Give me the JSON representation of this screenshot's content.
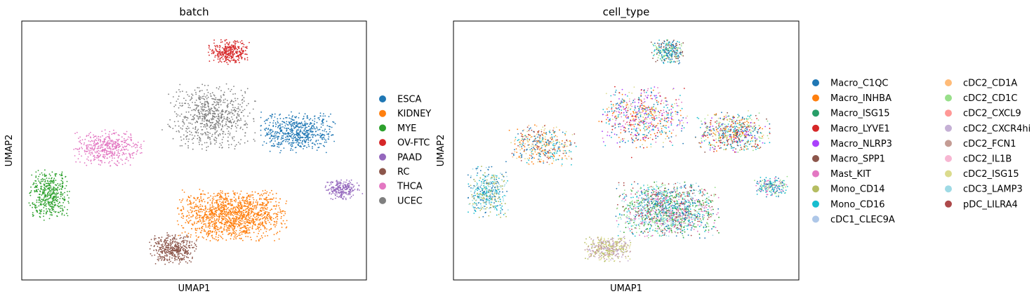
{
  "chart_data": [
    {
      "type": "scatter",
      "title": "batch",
      "xlabel": "UMAP1",
      "ylabel": "UMAP2",
      "ticks": "none",
      "grid": false,
      "legend_placement": "right",
      "legend": [
        {
          "label": "ESCA",
          "color": "#1f77b4"
        },
        {
          "label": "KIDNEY",
          "color": "#ff7f0e"
        },
        {
          "label": "MYE",
          "color": "#2ca02c"
        },
        {
          "label": "OV-FTC",
          "color": "#d62728"
        },
        {
          "label": "PAAD",
          "color": "#9467bd"
        },
        {
          "label": "RC",
          "color": "#8c564b"
        },
        {
          "label": "THCA",
          "color": "#e377c2"
        },
        {
          "label": "UCEC",
          "color": "#7f7f7f"
        }
      ],
      "clusters": [
        {
          "name": "OV-FTC",
          "center": [
            0.6,
            0.88
          ],
          "spread": [
            0.06,
            0.05
          ],
          "n": 320,
          "colors": [
            "#d62728"
          ]
        },
        {
          "name": "UCEC",
          "center": [
            0.55,
            0.63
          ],
          "spread": [
            0.13,
            0.13
          ],
          "n": 700,
          "colors": [
            "#7f7f7f"
          ]
        },
        {
          "name": "ESCA",
          "center": [
            0.8,
            0.57
          ],
          "spread": [
            0.11,
            0.08
          ],
          "n": 600,
          "colors": [
            "#1f77b4"
          ]
        },
        {
          "name": "THCA",
          "center": [
            0.25,
            0.51
          ],
          "spread": [
            0.1,
            0.07
          ],
          "n": 450,
          "colors": [
            "#e377c2"
          ]
        },
        {
          "name": "MYE",
          "center": [
            0.08,
            0.33
          ],
          "spread": [
            0.06,
            0.1
          ],
          "n": 450,
          "colors": [
            "#2ca02c"
          ]
        },
        {
          "name": "PAAD",
          "center": [
            0.93,
            0.35
          ],
          "spread": [
            0.05,
            0.04
          ],
          "n": 220,
          "colors": [
            "#9467bd"
          ]
        },
        {
          "name": "KIDNEY",
          "center": [
            0.61,
            0.25
          ],
          "spread": [
            0.16,
            0.1
          ],
          "n": 1400,
          "colors": [
            "#ff7f0e"
          ]
        },
        {
          "name": "RC",
          "center": [
            0.44,
            0.12
          ],
          "spread": [
            0.07,
            0.06
          ],
          "n": 420,
          "colors": [
            "#8c564b"
          ]
        }
      ]
    },
    {
      "type": "scatter",
      "title": "cell_type",
      "xlabel": "UMAP1",
      "ylabel": "UMAP2",
      "ticks": "none",
      "grid": false,
      "legend_placement": "right, two columns",
      "legend": [
        {
          "label": "Macro_C1QC",
          "color": "#1f77b4"
        },
        {
          "label": "Macro_INHBA",
          "color": "#ff7f0e"
        },
        {
          "label": "Macro_ISG15",
          "color": "#279e68"
        },
        {
          "label": "Macro_LYVE1",
          "color": "#d62728"
        },
        {
          "label": "Macro_NLRP3",
          "color": "#aa40fc"
        },
        {
          "label": "Macro_SPP1",
          "color": "#8c564b"
        },
        {
          "label": "Mast_KIT",
          "color": "#e377c2"
        },
        {
          "label": "Mono_CD14",
          "color": "#b5bd61"
        },
        {
          "label": "Mono_CD16",
          "color": "#17becf"
        },
        {
          "label": "cDC1_CLEC9A",
          "color": "#aec7e8"
        },
        {
          "label": "cDC2_CD1A",
          "color": "#ffbb78"
        },
        {
          "label": "cDC2_CD1C",
          "color": "#98df8a"
        },
        {
          "label": "cDC2_CXCL9",
          "color": "#ff9896"
        },
        {
          "label": "cDC2_CXCR4hi",
          "color": "#c5b0d5"
        },
        {
          "label": "cDC2_FCN1",
          "color": "#c49c94"
        },
        {
          "label": "cDC2_IL1B",
          "color": "#f7b6d2"
        },
        {
          "label": "cDC2_ISG15",
          "color": "#dbdb8d"
        },
        {
          "label": "cDC3_LAMP3",
          "color": "#9edae5"
        },
        {
          "label": "pDC_LILRA4",
          "color": "#ad494a"
        }
      ],
      "clusters": [
        {
          "name": "top",
          "center": [
            0.62,
            0.88
          ],
          "spread": [
            0.05,
            0.05
          ],
          "n": 260,
          "colors": [
            "#1f77b4",
            "#8c564b",
            "#98df8a",
            "#17becf"
          ]
        },
        {
          "name": "center",
          "center": [
            0.55,
            0.63
          ],
          "spread": [
            0.13,
            0.12
          ],
          "n": 650,
          "colors": [
            "#aa40fc",
            "#dbdb8d",
            "#1f77b4",
            "#d62728",
            "#17becf",
            "#e377c2",
            "#ff7f0e"
          ]
        },
        {
          "name": "right",
          "center": [
            0.81,
            0.57
          ],
          "spread": [
            0.11,
            0.08
          ],
          "n": 600,
          "colors": [
            "#8c564b",
            "#d62728",
            "#aa40fc",
            "#98df8a",
            "#1f77b4",
            "#dbdb8d",
            "#17becf",
            "#ff7f0e"
          ]
        },
        {
          "name": "left-mid",
          "center": [
            0.26,
            0.52
          ],
          "spread": [
            0.1,
            0.08
          ],
          "n": 420,
          "colors": [
            "#ff7f0e",
            "#1f77b4",
            "#dbdb8d",
            "#ad494a",
            "#17becf",
            "#ffbb78"
          ]
        },
        {
          "name": "left-low",
          "center": [
            0.1,
            0.34
          ],
          "spread": [
            0.06,
            0.1
          ],
          "n": 420,
          "colors": [
            "#9edae5",
            "#17becf",
            "#1f77b4",
            "#b5bd61"
          ]
        },
        {
          "name": "far-right",
          "center": [
            0.92,
            0.36
          ],
          "spread": [
            0.05,
            0.04
          ],
          "n": 200,
          "colors": [
            "#1f77b4",
            "#98df8a",
            "#e377c2",
            "#17becf"
          ]
        },
        {
          "name": "bottom-main",
          "center": [
            0.62,
            0.27
          ],
          "spread": [
            0.15,
            0.11
          ],
          "n": 1500,
          "colors": [
            "#17becf",
            "#98df8a",
            "#2ca02c",
            "#e377c2",
            "#ad494a",
            "#1f77b4",
            "#9edae5"
          ]
        },
        {
          "name": "bottom",
          "center": [
            0.45,
            0.12
          ],
          "spread": [
            0.07,
            0.05
          ],
          "n": 420,
          "colors": [
            "#dbdb8d",
            "#c5b0d5",
            "#c49c94",
            "#b5bd61"
          ]
        }
      ]
    }
  ]
}
